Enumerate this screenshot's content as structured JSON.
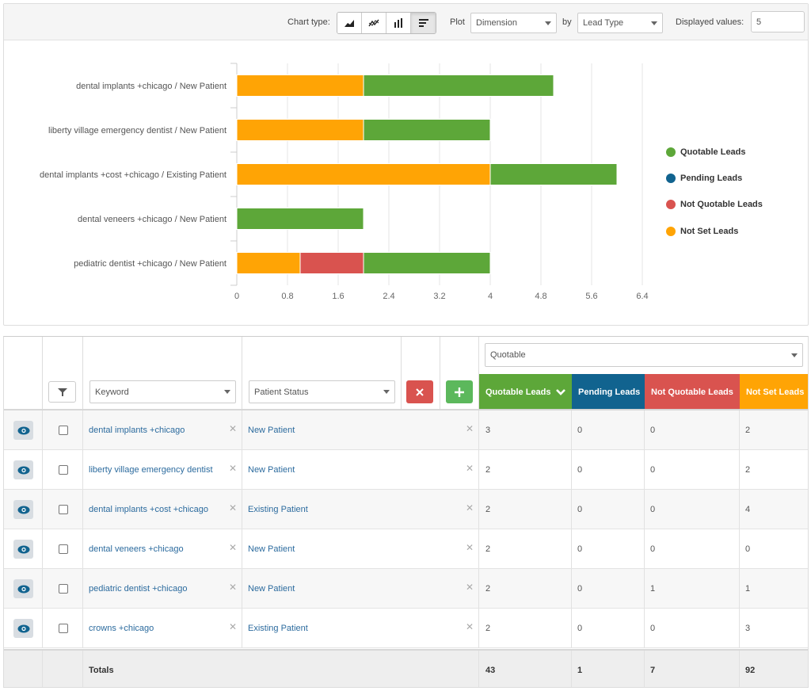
{
  "toolbar": {
    "chart_type_label": "Chart type:",
    "plot_label": "Plot",
    "plot_value": "Dimension",
    "by_label": "by",
    "by_value": "Lead Type",
    "displayed_label": "Displayed values:",
    "displayed_value": "5",
    "chart_type_buttons": [
      "area-chart-icon",
      "line-chart-icon",
      "column-chart-icon",
      "bar-chart-icon"
    ],
    "active_chart_type": "bar-chart-icon"
  },
  "colors": {
    "quotable": "#5da739",
    "pending": "#11638f",
    "not_quotable": "#d9534f",
    "not_set": "#ffa405"
  },
  "chart_data": {
    "type": "bar",
    "orientation": "horizontal",
    "stacked": true,
    "categories": [
      "dental implants +chicago / New Patient",
      "liberty village emergency dentist / New Patient",
      "dental implants +cost +chicago / Existing Patient",
      "dental veneers +chicago / New Patient",
      "pediatric dentist +chicago / New Patient"
    ],
    "series": [
      {
        "name": "Not Set Leads",
        "values": [
          2,
          2,
          4,
          0,
          1
        ]
      },
      {
        "name": "Not Quotable Leads",
        "values": [
          0,
          0,
          0,
          0,
          1
        ]
      },
      {
        "name": "Pending Leads",
        "values": [
          0,
          0,
          0,
          0,
          0
        ]
      },
      {
        "name": "Quotable Leads",
        "values": [
          3,
          2,
          2,
          2,
          2
        ]
      }
    ],
    "xlim": [
      0,
      6.4
    ],
    "xticks": [
      "0",
      "0.8",
      "1.6",
      "2.4",
      "3.2",
      "4",
      "4.8",
      "5.6",
      "6.4"
    ],
    "grid": true,
    "legend": [
      "Quotable Leads",
      "Pending Leads",
      "Not Quotable Leads",
      "Not Set Leads"
    ],
    "legend_position": "right"
  },
  "table": {
    "quotable_select": "Quotable",
    "keyword_select": "Keyword",
    "status_select": "Patient Status",
    "headers": {
      "quotable": "Quotable Leads",
      "pending": "Pending Leads",
      "not_quotable": "Not Quotable Leads",
      "not_set": "Not Set Leads"
    },
    "rows": [
      {
        "keyword": "dental implants +chicago",
        "status": "New Patient",
        "quotable": "3",
        "pending": "0",
        "not_quotable": "0",
        "not_set": "2"
      },
      {
        "keyword": "liberty village emergency dentist",
        "status": "New Patient",
        "quotable": "2",
        "pending": "0",
        "not_quotable": "0",
        "not_set": "2"
      },
      {
        "keyword": "dental implants +cost +chicago",
        "status": "Existing Patient",
        "quotable": "2",
        "pending": "0",
        "not_quotable": "0",
        "not_set": "4"
      },
      {
        "keyword": "dental veneers +chicago",
        "status": "New Patient",
        "quotable": "2",
        "pending": "0",
        "not_quotable": "0",
        "not_set": "0"
      },
      {
        "keyword": "pediatric dentist +chicago",
        "status": "New Patient",
        "quotable": "2",
        "pending": "0",
        "not_quotable": "1",
        "not_set": "1"
      },
      {
        "keyword": "crowns +chicago",
        "status": "Existing Patient",
        "quotable": "2",
        "pending": "0",
        "not_quotable": "0",
        "not_set": "3"
      }
    ],
    "totals": {
      "label": "Totals",
      "quotable": "43",
      "pending": "1",
      "not_quotable": "7",
      "not_set": "92"
    }
  }
}
